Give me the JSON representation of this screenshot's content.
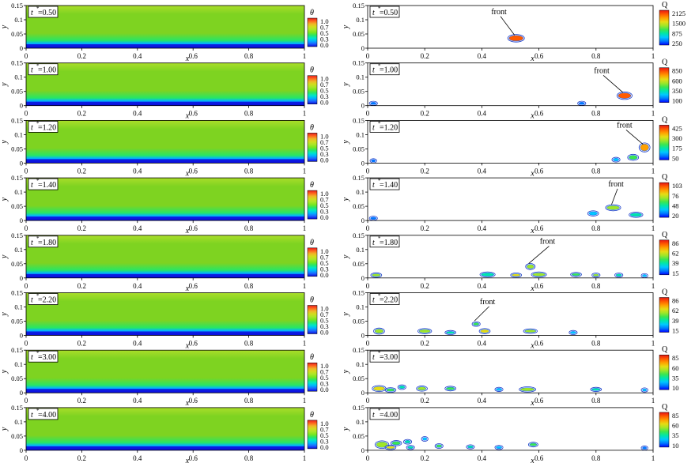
{
  "colors": {
    "theta_scale": [
      "#0a0adc",
      "#1e64ff",
      "#00b4ff",
      "#00e6c8",
      "#28e664",
      "#78e61e",
      "#aae628",
      "#d2dc1e",
      "#f0b428",
      "#ff641e",
      "#e61e1e"
    ],
    "field_base": "#7ed321",
    "field_upper": "#aade2a",
    "q_scale": [
      "#0000ff",
      "#0078ff",
      "#00c8ff",
      "#00e6aa",
      "#3ce650",
      "#a0e628",
      "#e6dc14",
      "#ffa000",
      "#ff5a00",
      "#e61414"
    ]
  },
  "chart_data": [
    {
      "type": "heatmap",
      "quantity": "theta",
      "time_label": "t",
      "time_value": "=0.50",
      "xlim": [
        0,
        1
      ],
      "ylim": [
        0,
        0.15
      ],
      "x_ticks": [
        "0",
        "0.2",
        "0.4",
        "0.6",
        "0.8",
        "1"
      ],
      "y_ticks": [
        "0",
        "0.05",
        "0.1",
        "0.15"
      ],
      "xlabel": "x",
      "ylabel": "y",
      "cbar_title": "θ",
      "cbar_ticks": [
        "1.0",
        "0.7",
        "0.5",
        "0.3",
        "0.0"
      ]
    },
    {
      "type": "contour",
      "quantity": "Q",
      "time_label": "t",
      "time_value": "=0.50",
      "xlim": [
        0,
        1
      ],
      "ylim": [
        0,
        0.15
      ],
      "x_ticks": [
        "0",
        "0.2",
        "0.4",
        "0.6",
        "0.8",
        "1"
      ],
      "y_ticks": [
        "0",
        "0.05",
        "0.1",
        "0.15"
      ],
      "xlabel": "x",
      "ylabel": "y",
      "cbar_title": "Q",
      "cbar_ticks": [
        "2125",
        "1500",
        "875",
        "250"
      ],
      "annotation": {
        "text": "front",
        "x": 0.46,
        "y": 0.12
      },
      "blobs": [
        {
          "x": 0.52,
          "y": 0.035,
          "w": 0.05,
          "h": 0.02,
          "level": 0.9
        }
      ]
    },
    {
      "type": "heatmap",
      "quantity": "theta",
      "time_label": "t",
      "time_value": "=1.00",
      "xlim": [
        0,
        1
      ],
      "ylim": [
        0,
        0.15
      ],
      "x_ticks": [
        "0",
        "0.2",
        "0.4",
        "0.6",
        "0.8",
        "1"
      ],
      "y_ticks": [
        "0",
        "0.05",
        "0.1",
        "0.15"
      ],
      "xlabel": "x",
      "ylabel": "y",
      "cbar_title": "θ",
      "cbar_ticks": [
        "1.0",
        "0.7",
        "0.5",
        "0.3",
        "0.0"
      ]
    },
    {
      "type": "contour",
      "quantity": "Q",
      "time_label": "t",
      "time_value": "=1.00",
      "xlim": [
        0,
        1
      ],
      "ylim": [
        0,
        0.15
      ],
      "x_ticks": [
        "0",
        "0.2",
        "0.4",
        "0.6",
        "0.8",
        "1"
      ],
      "y_ticks": [
        "0",
        "0.05",
        "0.1",
        "0.15"
      ],
      "xlabel": "x",
      "ylabel": "y",
      "cbar_title": "Q",
      "cbar_ticks": [
        "850",
        "600",
        "350",
        "100"
      ],
      "annotation": {
        "text": "front",
        "x": 0.82,
        "y": 0.115
      },
      "blobs": [
        {
          "x": 0.9,
          "y": 0.035,
          "w": 0.045,
          "h": 0.02,
          "level": 0.85
        },
        {
          "x": 0.02,
          "y": 0.008,
          "w": 0.02,
          "h": 0.008,
          "level": 0.15
        },
        {
          "x": 0.75,
          "y": 0.008,
          "w": 0.02,
          "h": 0.007,
          "level": 0.1
        }
      ]
    },
    {
      "type": "heatmap",
      "quantity": "theta",
      "time_label": "t",
      "time_value": "=1.20",
      "xlim": [
        0,
        1
      ],
      "ylim": [
        0,
        0.15
      ],
      "x_ticks": [
        "0",
        "0.2",
        "0.4",
        "0.6",
        "0.8",
        "1"
      ],
      "y_ticks": [
        "0",
        "0.05",
        "0.1",
        "0.15"
      ],
      "xlabel": "x",
      "ylabel": "y",
      "cbar_title": "θ",
      "cbar_ticks": [
        "1.0",
        "0.7",
        "0.5",
        "0.3",
        "0.0"
      ]
    },
    {
      "type": "contour",
      "quantity": "Q",
      "time_label": "t",
      "time_value": "=1.20",
      "xlim": [
        0,
        1
      ],
      "ylim": [
        0,
        0.15
      ],
      "x_ticks": [
        "0",
        "0.2",
        "0.4",
        "0.6",
        "0.8",
        "1"
      ],
      "y_ticks": [
        "0",
        "0.05",
        "0.1",
        "0.15"
      ],
      "xlabel": "x",
      "ylabel": "y",
      "cbar_title": "Q",
      "cbar_ticks": [
        "425",
        "300",
        "175",
        "50"
      ],
      "annotation": {
        "text": "front",
        "x": 0.9,
        "y": 0.125
      },
      "blobs": [
        {
          "x": 0.97,
          "y": 0.055,
          "w": 0.03,
          "h": 0.025,
          "level": 0.8
        },
        {
          "x": 0.93,
          "y": 0.02,
          "w": 0.03,
          "h": 0.015,
          "level": 0.4
        },
        {
          "x": 0.87,
          "y": 0.012,
          "w": 0.02,
          "h": 0.01,
          "level": 0.2
        },
        {
          "x": 0.02,
          "y": 0.008,
          "w": 0.015,
          "h": 0.008,
          "level": 0.1
        }
      ]
    },
    {
      "type": "heatmap",
      "quantity": "theta",
      "time_label": "t",
      "time_value": "=1.40",
      "xlim": [
        0,
        1
      ],
      "ylim": [
        0,
        0.15
      ],
      "x_ticks": [
        "0",
        "0.2",
        "0.4",
        "0.6",
        "0.8",
        "1"
      ],
      "y_ticks": [
        "0",
        "0.05",
        "0.1",
        "0.15"
      ],
      "xlabel": "x",
      "ylabel": "y",
      "cbar_title": "θ",
      "cbar_ticks": [
        "1.0",
        "0.7",
        "0.5",
        "0.3",
        "0.0"
      ]
    },
    {
      "type": "contour",
      "quantity": "Q",
      "time_label": "t",
      "time_value": "=1.40",
      "xlim": [
        0,
        1
      ],
      "ylim": [
        0,
        0.15
      ],
      "x_ticks": [
        "0",
        "0.2",
        "0.4",
        "0.6",
        "0.8",
        "1"
      ],
      "y_ticks": [
        "0",
        "0.05",
        "0.1",
        "0.15"
      ],
      "xlabel": "x",
      "ylabel": "y",
      "cbar_title": "Q",
      "cbar_ticks": [
        "103",
        "76",
        "48",
        "20"
      ],
      "annotation": {
        "text": "front",
        "x": 0.87,
        "y": 0.12
      },
      "blobs": [
        {
          "x": 0.86,
          "y": 0.045,
          "w": 0.045,
          "h": 0.015,
          "level": 0.5
        },
        {
          "x": 0.79,
          "y": 0.025,
          "w": 0.03,
          "h": 0.012,
          "level": 0.2
        },
        {
          "x": 0.94,
          "y": 0.02,
          "w": 0.04,
          "h": 0.012,
          "level": 0.35
        },
        {
          "x": 0.02,
          "y": 0.008,
          "w": 0.02,
          "h": 0.008,
          "level": 0.1
        }
      ]
    },
    {
      "type": "heatmap",
      "quantity": "theta",
      "time_label": "t",
      "time_value": "=1.80",
      "xlim": [
        0,
        1
      ],
      "ylim": [
        0,
        0.15
      ],
      "x_ticks": [
        "0",
        "0.2",
        "0.4",
        "0.6",
        "0.8",
        "1"
      ],
      "y_ticks": [
        "0",
        "0.05",
        "0.1",
        "0.15"
      ],
      "xlabel": "x",
      "ylabel": "y",
      "cbar_title": "θ",
      "cbar_ticks": [
        "1.0",
        "0.7",
        "0.5",
        "0.3",
        "0.0"
      ]
    },
    {
      "type": "contour",
      "quantity": "Q",
      "time_label": "t",
      "time_value": "=1.80",
      "xlim": [
        0,
        1
      ],
      "ylim": [
        0,
        0.15
      ],
      "x_ticks": [
        "0",
        "0.2",
        "0.4",
        "0.6",
        "0.8",
        "1"
      ],
      "y_ticks": [
        "0",
        "0.05",
        "0.1",
        "0.15"
      ],
      "xlabel": "x",
      "ylabel": "y",
      "cbar_title": "Q",
      "cbar_ticks": [
        "86",
        "62",
        "39",
        "15"
      ],
      "annotation": {
        "text": "front",
        "x": 0.63,
        "y": 0.12
      },
      "blobs": [
        {
          "x": 0.57,
          "y": 0.04,
          "w": 0.025,
          "h": 0.015,
          "level": 0.6
        },
        {
          "x": 0.6,
          "y": 0.012,
          "w": 0.045,
          "h": 0.012,
          "level": 0.5
        },
        {
          "x": 0.42,
          "y": 0.012,
          "w": 0.045,
          "h": 0.012,
          "level": 0.3
        },
        {
          "x": 0.52,
          "y": 0.01,
          "w": 0.03,
          "h": 0.009,
          "level": 0.7
        },
        {
          "x": 0.73,
          "y": 0.012,
          "w": 0.03,
          "h": 0.009,
          "level": 0.4
        },
        {
          "x": 0.8,
          "y": 0.01,
          "w": 0.02,
          "h": 0.008,
          "level": 0.6
        },
        {
          "x": 0.88,
          "y": 0.01,
          "w": 0.02,
          "h": 0.008,
          "level": 0.3
        },
        {
          "x": 0.03,
          "y": 0.01,
          "w": 0.03,
          "h": 0.01,
          "level": 0.5
        },
        {
          "x": 0.97,
          "y": 0.008,
          "w": 0.015,
          "h": 0.007,
          "level": 0.2
        }
      ]
    },
    {
      "type": "heatmap",
      "quantity": "theta",
      "time_label": "t",
      "time_value": "=2.20",
      "xlim": [
        0,
        1
      ],
      "ylim": [
        0,
        0.15
      ],
      "x_ticks": [
        "0",
        "0.2",
        "0.4",
        "0.6",
        "0.8",
        "1"
      ],
      "y_ticks": [
        "0",
        "0.05",
        "0.1",
        "0.15"
      ],
      "xlabel": "x",
      "ylabel": "y",
      "cbar_title": "θ",
      "cbar_ticks": [
        "1.0",
        "0.7",
        "0.5",
        "0.3",
        "0.0"
      ]
    },
    {
      "type": "contour",
      "quantity": "Q",
      "time_label": "t",
      "time_value": "=2.20",
      "xlim": [
        0,
        1
      ],
      "ylim": [
        0,
        0.15
      ],
      "x_ticks": [
        "0",
        "0.2",
        "0.4",
        "0.6",
        "0.8",
        "1"
      ],
      "y_ticks": [
        "0",
        "0.05",
        "0.1",
        "0.15"
      ],
      "xlabel": "x",
      "ylabel": "y",
      "cbar_title": "Q",
      "cbar_ticks": [
        "86",
        "62",
        "39",
        "15"
      ],
      "annotation": {
        "text": "front",
        "x": 0.42,
        "y": 0.11
      },
      "blobs": [
        {
          "x": 0.38,
          "y": 0.04,
          "w": 0.02,
          "h": 0.01,
          "level": 0.4
        },
        {
          "x": 0.2,
          "y": 0.015,
          "w": 0.04,
          "h": 0.012,
          "level": 0.6
        },
        {
          "x": 0.41,
          "y": 0.015,
          "w": 0.03,
          "h": 0.012,
          "level": 0.7
        },
        {
          "x": 0.57,
          "y": 0.015,
          "w": 0.04,
          "h": 0.01,
          "level": 0.5
        },
        {
          "x": 0.29,
          "y": 0.01,
          "w": 0.03,
          "h": 0.008,
          "level": 0.3
        },
        {
          "x": 0.04,
          "y": 0.015,
          "w": 0.03,
          "h": 0.015,
          "level": 0.5
        },
        {
          "x": 0.72,
          "y": 0.01,
          "w": 0.02,
          "h": 0.007,
          "level": 0.2
        }
      ]
    },
    {
      "type": "heatmap",
      "quantity": "theta",
      "time_label": "t",
      "time_value": "=3.00",
      "xlim": [
        0,
        1
      ],
      "ylim": [
        0,
        0.15
      ],
      "x_ticks": [
        "0",
        "0.2",
        "0.4",
        "0.6",
        "0.8",
        "1"
      ],
      "y_ticks": [
        "0",
        "0.05",
        "0.1",
        "0.15"
      ],
      "xlabel": "x",
      "ylabel": "y",
      "cbar_title": "θ",
      "cbar_ticks": [
        "1.0",
        "0.7",
        "0.5",
        "0.3",
        "0.0"
      ]
    },
    {
      "type": "contour",
      "quantity": "Q",
      "time_label": "t",
      "time_value": "=3.00",
      "xlim": [
        0,
        1
      ],
      "ylim": [
        0,
        0.15
      ],
      "x_ticks": [
        "0",
        "0.2",
        "0.4",
        "0.6",
        "0.8",
        "1"
      ],
      "y_ticks": [
        "0",
        "0.05",
        "0.1",
        "0.15"
      ],
      "xlabel": "x",
      "ylabel": "y",
      "cbar_title": "Q",
      "cbar_ticks": [
        "85",
        "60",
        "35",
        "10"
      ],
      "blobs": [
        {
          "x": 0.56,
          "y": 0.012,
          "w": 0.05,
          "h": 0.012,
          "level": 0.6
        },
        {
          "x": 0.29,
          "y": 0.015,
          "w": 0.03,
          "h": 0.01,
          "level": 0.4
        },
        {
          "x": 0.19,
          "y": 0.015,
          "w": 0.03,
          "h": 0.012,
          "level": 0.5
        },
        {
          "x": 0.12,
          "y": 0.02,
          "w": 0.02,
          "h": 0.01,
          "level": 0.3
        },
        {
          "x": 0.04,
          "y": 0.015,
          "w": 0.04,
          "h": 0.015,
          "level": 0.7
        },
        {
          "x": 0.08,
          "y": 0.01,
          "w": 0.03,
          "h": 0.01,
          "level": 0.4
        },
        {
          "x": 0.8,
          "y": 0.012,
          "w": 0.03,
          "h": 0.008,
          "level": 0.3
        },
        {
          "x": 0.97,
          "y": 0.01,
          "w": 0.015,
          "h": 0.006,
          "level": 0.2
        },
        {
          "x": 0.46,
          "y": 0.012,
          "w": 0.02,
          "h": 0.006,
          "level": 0.2
        }
      ]
    },
    {
      "type": "heatmap",
      "quantity": "theta",
      "time_label": "t",
      "time_value": "=4.00",
      "xlim": [
        0,
        1
      ],
      "ylim": [
        0,
        0.15
      ],
      "x_ticks": [
        "0",
        "0.2",
        "0.4",
        "0.6",
        "0.8",
        "1"
      ],
      "y_ticks": [
        "0",
        "0.05",
        "0.1",
        "0.15"
      ],
      "xlabel": "x",
      "ylabel": "y",
      "cbar_title": "θ",
      "cbar_ticks": [
        "1.0",
        "0.7",
        "0.5",
        "0.3",
        "0.0"
      ]
    },
    {
      "type": "contour",
      "quantity": "Q",
      "time_label": "t",
      "time_value": "=4.00",
      "xlim": [
        0,
        1
      ],
      "ylim": [
        0,
        0.15
      ],
      "x_ticks": [
        "0",
        "0.2",
        "0.4",
        "0.6",
        "0.8",
        "1"
      ],
      "y_ticks": [
        "0",
        "0.05",
        "0.1",
        "0.15"
      ],
      "xlabel": "x",
      "ylabel": "y",
      "cbar_title": "Q",
      "cbar_ticks": [
        "85",
        "60",
        "35",
        "10"
      ],
      "blobs": [
        {
          "x": 0.05,
          "y": 0.02,
          "w": 0.04,
          "h": 0.02,
          "level": 0.5
        },
        {
          "x": 0.1,
          "y": 0.025,
          "w": 0.03,
          "h": 0.012,
          "level": 0.4
        },
        {
          "x": 0.14,
          "y": 0.03,
          "w": 0.02,
          "h": 0.01,
          "level": 0.3
        },
        {
          "x": 0.08,
          "y": 0.01,
          "w": 0.03,
          "h": 0.01,
          "level": 0.7
        },
        {
          "x": 0.15,
          "y": 0.01,
          "w": 0.02,
          "h": 0.008,
          "level": 0.3
        },
        {
          "x": 0.25,
          "y": 0.015,
          "w": 0.02,
          "h": 0.01,
          "level": 0.4
        },
        {
          "x": 0.36,
          "y": 0.012,
          "w": 0.02,
          "h": 0.008,
          "level": 0.3
        },
        {
          "x": 0.46,
          "y": 0.01,
          "w": 0.02,
          "h": 0.007,
          "level": 0.2
        },
        {
          "x": 0.58,
          "y": 0.02,
          "w": 0.025,
          "h": 0.01,
          "level": 0.4
        },
        {
          "x": 0.2,
          "y": 0.04,
          "w": 0.015,
          "h": 0.01,
          "level": 0.2
        },
        {
          "x": 0.97,
          "y": 0.008,
          "w": 0.015,
          "h": 0.006,
          "level": 0.1
        }
      ]
    }
  ]
}
